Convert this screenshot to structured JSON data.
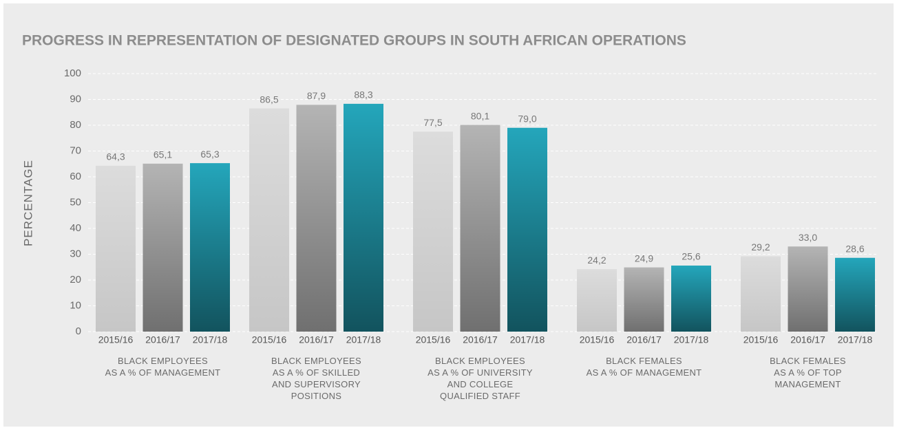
{
  "chart_data": {
    "type": "bar",
    "title": "PROGRESS IN REPRESENTATION OF DESIGNATED GROUPS IN SOUTH AFRICAN OPERATIONS",
    "y_label": "PERCENTAGE",
    "categories": [
      "BLACK EMPLOYEES\nAS A % OF MANAGEMENT",
      "BLACK EMPLOYEES\nAS A % OF SKILLED\nAND SUPERVISORY\nPOSITIONS",
      "BLACK EMPLOYEES\nAS A % OF UNIVERSITY\nAND COLLEGE\nQUALIFIED STAFF",
      "BLACK FEMALES\nAS A % OF MANAGEMENT",
      "BLACK FEMALES\nAS A % OF TOP\nMANAGEMENT"
    ],
    "series": [
      {
        "name": "2015/16",
        "color": "#dcdcdc",
        "values": [
          64.3,
          86.5,
          77.5,
          24.2,
          29.2
        ],
        "value_labels": [
          "64,3",
          "86,5",
          "77,5",
          "24,2",
          "29,2"
        ]
      },
      {
        "name": "2016/17",
        "color": "#b4b4b4",
        "values": [
          65.1,
          87.9,
          80.1,
          24.9,
          33.0
        ],
        "value_labels": [
          "65,1",
          "87,9",
          "80,1",
          "24,9",
          "33,0"
        ]
      },
      {
        "name": "2017/18",
        "color": "#24a6bb",
        "values": [
          65.3,
          88.3,
          79.0,
          25.6,
          28.6
        ],
        "value_labels": [
          "65,3",
          "88,3",
          "79,0",
          "25,6",
          "28,6"
        ]
      }
    ],
    "ylim": [
      0,
      100
    ],
    "yticks": [
      0,
      10,
      20,
      30,
      40,
      50,
      60,
      70,
      80,
      90,
      100
    ],
    "grid": true
  }
}
